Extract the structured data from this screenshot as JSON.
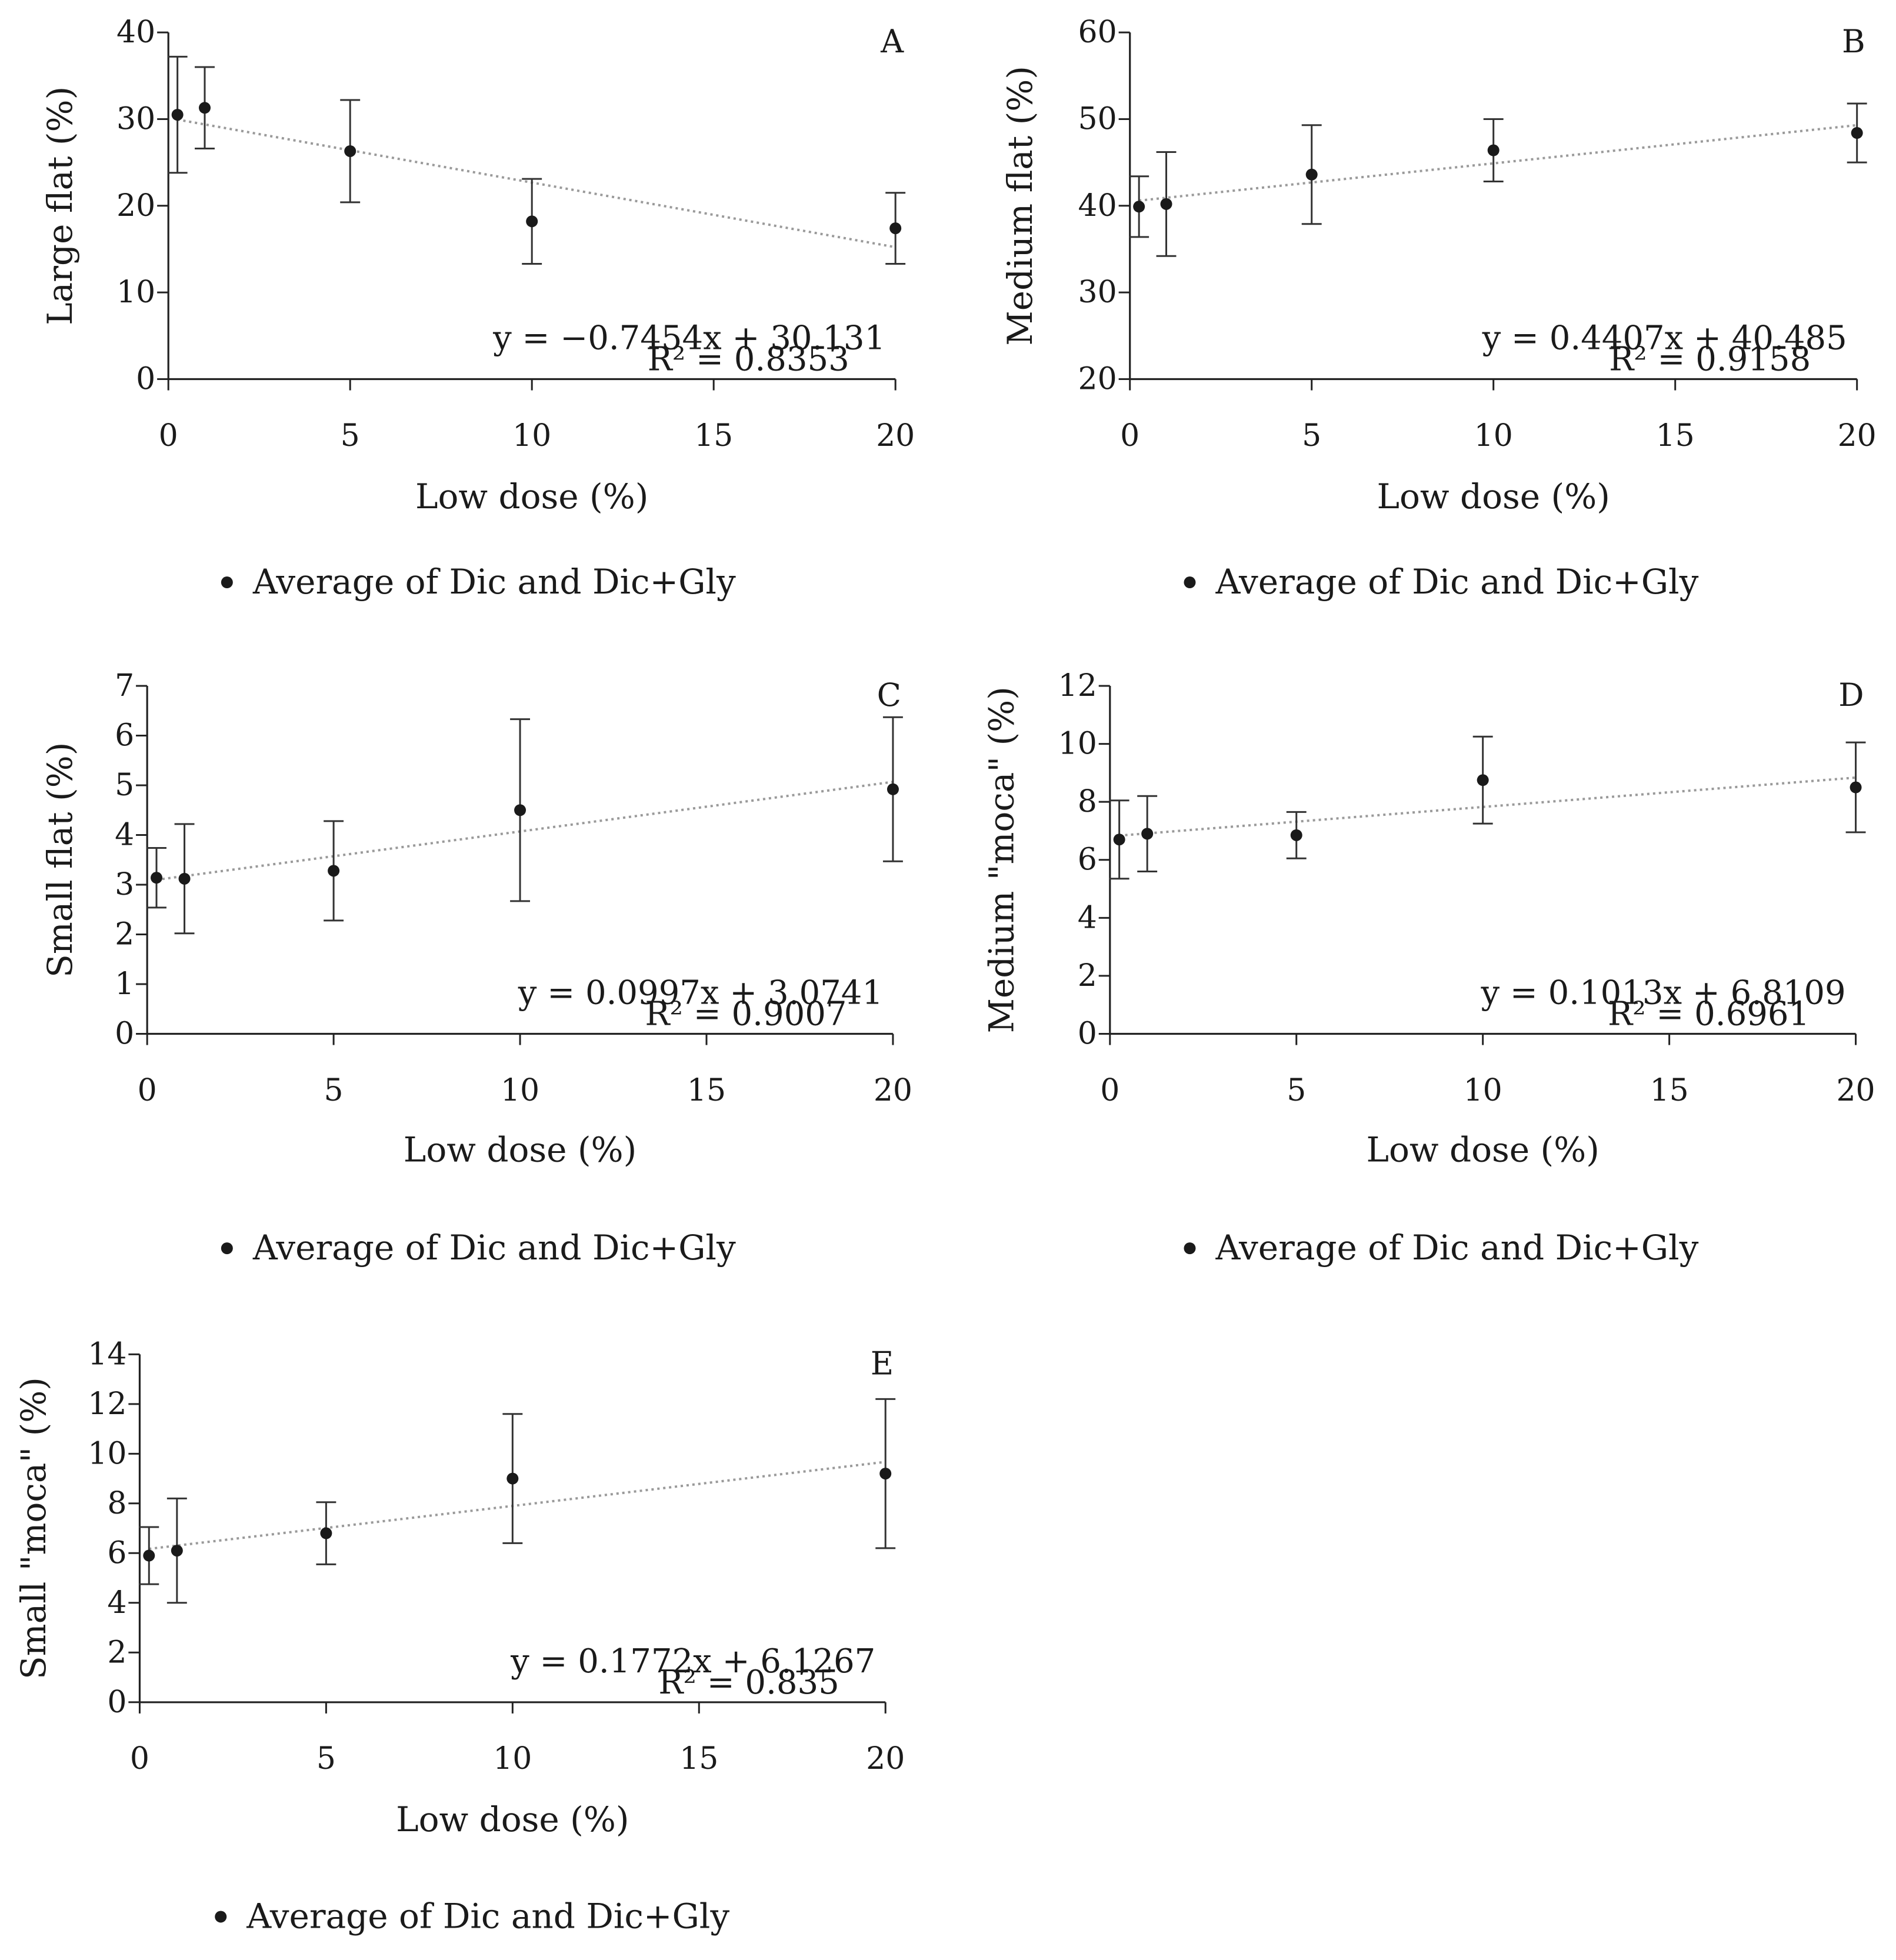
{
  "chart_data": [
    {
      "panel": "A",
      "type": "scatter",
      "ylabel": "Large flat (%)",
      "xlabel": "Low dose (%)",
      "xlim": [
        0,
        20
      ],
      "ylim": [
        0,
        40
      ],
      "xticks": [
        0,
        5,
        10,
        15,
        20
      ],
      "yticks": [
        0,
        10,
        20,
        30,
        40
      ],
      "points": [
        {
          "x": 0.25,
          "y": 30.5,
          "err": 6.7
        },
        {
          "x": 1,
          "y": 31.3,
          "err": 4.7
        },
        {
          "x": 5,
          "y": 26.3,
          "err": 5.9
        },
        {
          "x": 10,
          "y": 18.2,
          "err": 4.9
        },
        {
          "x": 20,
          "y": 17.4,
          "err": 4.1
        }
      ],
      "trendline": {
        "slope": -0.7454,
        "intercept": 30.131
      },
      "equation": "y = −0.7454x + 30.131",
      "r2": "R² = 0.8353",
      "legend": "Average of Dic and Dic+Gly"
    },
    {
      "panel": "B",
      "type": "scatter",
      "ylabel": "Medium flat (%)",
      "xlabel": "Low dose (%)",
      "xlim": [
        0,
        20
      ],
      "ylim": [
        20,
        60
      ],
      "xticks": [
        0,
        5,
        10,
        15,
        20
      ],
      "yticks": [
        20,
        30,
        40,
        50,
        60
      ],
      "points": [
        {
          "x": 0.25,
          "y": 39.9,
          "err": 3.5
        },
        {
          "x": 1,
          "y": 40.2,
          "err": 6.0
        },
        {
          "x": 5,
          "y": 43.6,
          "err": 5.7
        },
        {
          "x": 10,
          "y": 46.4,
          "err": 3.6
        },
        {
          "x": 20,
          "y": 48.4,
          "err": 3.4
        }
      ],
      "trendline": {
        "slope": 0.4407,
        "intercept": 40.485
      },
      "equation": "y = 0.4407x + 40.485",
      "r2": "R² = 0.9158",
      "legend": "Average of Dic and Dic+Gly"
    },
    {
      "panel": "C",
      "type": "scatter",
      "ylabel": "Small flat (%)",
      "xlabel": "Low dose (%)",
      "xlim": [
        0,
        20
      ],
      "ylim": [
        0,
        7
      ],
      "xticks": [
        0,
        5,
        10,
        15,
        20
      ],
      "yticks": [
        0,
        1,
        2,
        3,
        4,
        5,
        6,
        7
      ],
      "points": [
        {
          "x": 0.25,
          "y": 3.14,
          "err": 0.6
        },
        {
          "x": 1,
          "y": 3.12,
          "err": 1.1
        },
        {
          "x": 5,
          "y": 3.28,
          "err": 1.0
        },
        {
          "x": 10,
          "y": 4.5,
          "err": 1.83
        },
        {
          "x": 20,
          "y": 4.92,
          "err": 1.45
        }
      ],
      "trendline": {
        "slope": 0.0997,
        "intercept": 3.0741
      },
      "equation": "y = 0.0997x + 3.0741",
      "r2": "R² = 0.9007",
      "legend": "Average of Dic and Dic+Gly"
    },
    {
      "panel": "D",
      "type": "scatter",
      "ylabel": "Medium \"moca\" (%)",
      "xlabel": "Low dose (%)",
      "xlim": [
        0,
        20
      ],
      "ylim": [
        0,
        12
      ],
      "xticks": [
        0,
        5,
        10,
        15,
        20
      ],
      "yticks": [
        0,
        2,
        4,
        6,
        8,
        10,
        12
      ],
      "points": [
        {
          "x": 0.25,
          "y": 6.7,
          "err": 1.35
        },
        {
          "x": 1,
          "y": 6.9,
          "err": 1.3
        },
        {
          "x": 5,
          "y": 6.85,
          "err": 0.8
        },
        {
          "x": 10,
          "y": 8.75,
          "err": 1.5
        },
        {
          "x": 20,
          "y": 8.5,
          "err": 1.55
        }
      ],
      "trendline": {
        "slope": 0.1013,
        "intercept": 6.8109
      },
      "equation": "y = 0.1013x + 6.8109",
      "r2": "R² = 0.6961",
      "legend": "Average of Dic and Dic+Gly"
    },
    {
      "panel": "E",
      "type": "scatter",
      "ylabel": "Small \"moca\" (%)",
      "xlabel": "Low dose (%)",
      "xlim": [
        0,
        20
      ],
      "ylim": [
        0,
        14
      ],
      "xticks": [
        0,
        5,
        10,
        15,
        20
      ],
      "yticks": [
        0,
        2,
        4,
        6,
        8,
        10,
        12,
        14
      ],
      "points": [
        {
          "x": 0.25,
          "y": 5.9,
          "err": 1.15
        },
        {
          "x": 1,
          "y": 6.1,
          "err": 2.1
        },
        {
          "x": 5,
          "y": 6.8,
          "err": 1.25
        },
        {
          "x": 10,
          "y": 9.0,
          "err": 2.6
        },
        {
          "x": 20,
          "y": 9.2,
          "err": 3.0
        }
      ],
      "trendline": {
        "slope": 0.1772,
        "intercept": 6.1267
      },
      "equation": "y = 0.1772x + 6.1267",
      "r2": "R² = 0.835",
      "legend": "Average of Dic and Dic+Gly"
    }
  ]
}
